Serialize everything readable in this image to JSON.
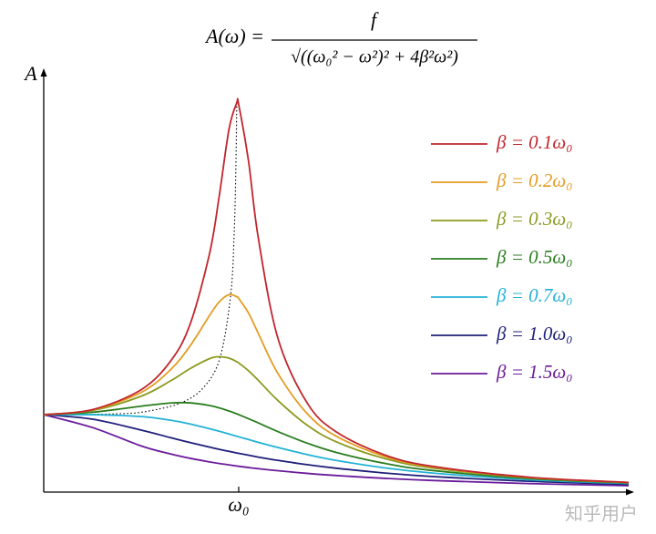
{
  "chart_data": {
    "type": "line",
    "formula": {
      "lhs": "A(ω) =",
      "numerator": "f",
      "denominator": "√((ω₀² − ω²)² + 4β²ω²)"
    },
    "y_label": "A",
    "x": [
      0,
      0.25,
      0.5,
      0.65,
      0.75,
      0.85,
      0.9,
      0.95,
      0.99,
      1.0,
      1.05,
      1.1,
      1.2,
      1.35,
      1.5,
      1.75,
      2.0,
      2.5,
      3.0
    ],
    "series": [
      {
        "name": "β = 0.1ω₀",
        "color": "#c0262c",
        "values": [
          1,
          1.065,
          1.322,
          1.689,
          2.162,
          3.073,
          3.821,
          4.682,
          5.025,
          5.0,
          4.279,
          3.288,
          1.995,
          1.155,
          0.778,
          0.478,
          0.33,
          0.19,
          0.125
        ]
      },
      {
        "name": "β = 0.2ω₀",
        "color": "#e59c22",
        "values": [
          1,
          1.061,
          1.288,
          1.579,
          1.885,
          2.278,
          2.456,
          2.549,
          2.522,
          2.5,
          2.313,
          2.051,
          1.536,
          1.016,
          0.721,
          0.459,
          0.322,
          0.187,
          0.124
        ]
      },
      {
        "name": "β = 0.3ω₀",
        "color": "#8c9a1e",
        "values": [
          1,
          1.053,
          1.238,
          1.435,
          1.593,
          1.722,
          1.747,
          1.729,
          1.683,
          1.667,
          1.567,
          1.444,
          1.185,
          0.866,
          0.649,
          0.432,
          0.309,
          0.183,
          0.122
        ]
      },
      {
        "name": "β = 0.5ω₀",
        "color": "#2a7d1f",
        "values": [
          1,
          1.031,
          1.109,
          1.15,
          1.152,
          1.118,
          1.087,
          1.047,
          1.01,
          1.0,
          0.948,
          0.893,
          0.782,
          0.633,
          0.512,
          0.37,
          0.277,
          0.172,
          0.117
        ]
      },
      {
        "name": "β = 0.7ω₀",
        "color": "#22b2d6",
        "values": [
          1,
          0.999,
          0.975,
          0.928,
          0.879,
          0.818,
          0.785,
          0.75,
          0.721,
          0.714,
          0.679,
          0.643,
          0.576,
          0.485,
          0.409,
          0.312,
          0.244,
          0.158,
          0.111
        ]
      },
      {
        "name": "β = 1.0ω₀",
        "color": "#1f1f7a",
        "values": [
          1,
          0.941,
          0.8,
          0.703,
          0.64,
          0.581,
          0.552,
          0.526,
          0.505,
          0.5,
          0.476,
          0.452,
          0.41,
          0.354,
          0.308,
          0.246,
          0.2,
          0.138,
          0.1
        ]
      },
      {
        "name": "β = 1.5ω₀",
        "color": "#6a1b9a",
        "values": [
          1,
          0.833,
          0.596,
          0.492,
          0.436,
          0.39,
          0.369,
          0.351,
          0.337,
          0.333,
          0.317,
          0.302,
          0.276,
          0.242,
          0.214,
          0.177,
          0.149,
          0.109,
          0.083
        ]
      }
    ],
    "peak_locus": {
      "color": "#000000",
      "linestyle": "dotted",
      "x": [
        0.99,
        0.9855,
        0.9772,
        0.9592,
        0.9055,
        0.8246,
        0.7071,
        0.5292,
        0.3937,
        0.1414,
        0
      ],
      "values": [
        5.025,
        4.197,
        3.371,
        2.552,
        1.747,
        1.364,
        1.155,
        1.042,
        1.012,
        1.0003,
        1
      ]
    },
    "xlim": [
      0,
      3.0
    ],
    "ylim": [
      0,
      5.4
    ],
    "xticks": [
      {
        "value": 1,
        "label": "ω₀"
      }
    ],
    "legend": "upper right",
    "watermark": "知乎用户"
  }
}
